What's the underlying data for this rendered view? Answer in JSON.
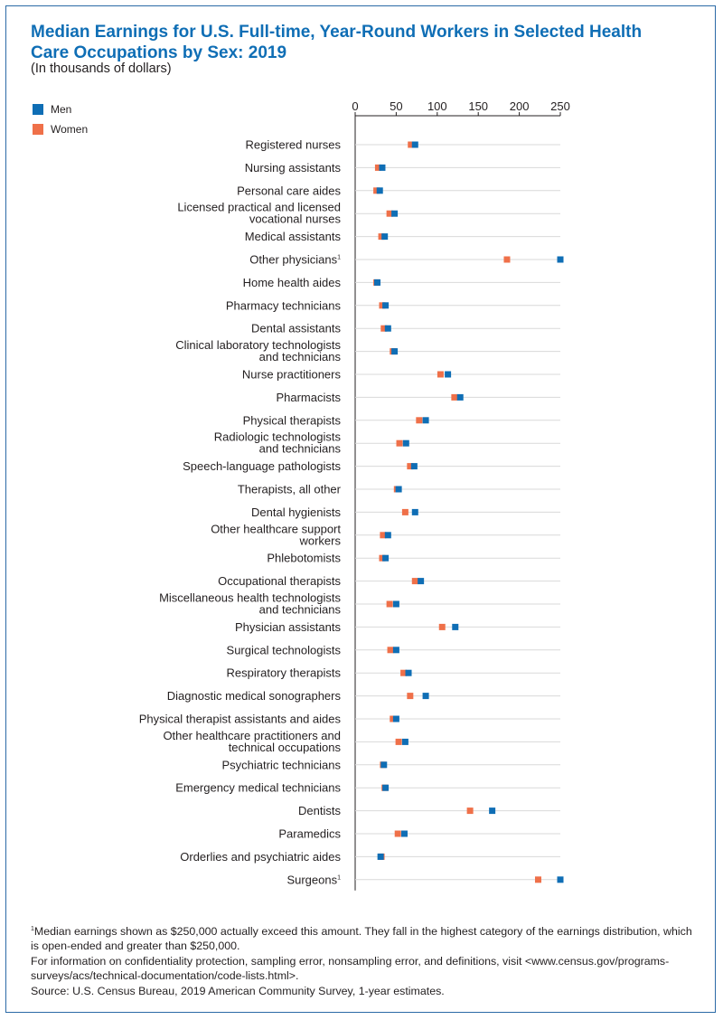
{
  "title": "Median Earnings for U.S. Full-time, Year-Round Workers in Selected Health Care Occupations by Sex: 2019",
  "subtitle": "(In thousands of dollars)",
  "colors": {
    "men": "#0f6eb5",
    "women": "#ef7049",
    "gridline": "#d9d9d9",
    "axis": "#231f20"
  },
  "legend": {
    "men": "Men",
    "women": "Women"
  },
  "chart_data": {
    "type": "scatter",
    "title": "Median Earnings for U.S. Full-time, Year-Round Workers in Selected Health Care Occupations by Sex: 2019",
    "xlabel": "",
    "ylabel": "",
    "xlim": [
      0,
      250
    ],
    "xticks": [
      0,
      50,
      100,
      150,
      200,
      250
    ],
    "grid": true,
    "legend_position": "top-left",
    "categories": [
      "Registered nurses",
      "Nursing assistants",
      "Personal care aides",
      "Licensed practical and licensed vocational nurses",
      "Medical assistants",
      "Other physicians",
      "Home health aides",
      "Pharmacy technicians",
      "Dental assistants",
      "Clinical laboratory technologists and technicians",
      "Nurse practitioners",
      "Pharmacists",
      "Physical therapists",
      "Radiologic technologists and technicians",
      "Speech-language pathologists",
      "Therapists, all other",
      "Dental hygienists",
      "Other healthcare support workers",
      "Phlebotomists",
      "Occupational therapists",
      "Miscellaneous health technologists and technicians",
      "Physician assistants",
      "Surgical technologists",
      "Respiratory therapists",
      "Diagnostic medical sonographers",
      "Physical therapist assistants and aides",
      "Other healthcare practitioners and technical occupations",
      "Psychiatric technicians",
      "Emergency medical technicians",
      "Dentists",
      "Paramedics",
      "Orderlies and psychiatric aides",
      "Surgeons"
    ],
    "category_lines": [
      [
        "Registered nurses"
      ],
      [
        "Nursing assistants"
      ],
      [
        "Personal care aides"
      ],
      [
        "Licensed practical and licensed",
        "vocational nurses"
      ],
      [
        "Medical assistants"
      ],
      [
        "Other physicians"
      ],
      [
        "Home health aides"
      ],
      [
        "Pharmacy technicians"
      ],
      [
        "Dental assistants"
      ],
      [
        "Clinical laboratory technologists",
        "and technicians"
      ],
      [
        "Nurse practitioners"
      ],
      [
        "Pharmacists"
      ],
      [
        "Physical therapists"
      ],
      [
        "Radiologic technologists",
        "and technicians"
      ],
      [
        "Speech-language pathologists"
      ],
      [
        "Therapists, all other"
      ],
      [
        "Dental hygienists"
      ],
      [
        "Other healthcare support",
        "workers"
      ],
      [
        "Phlebotomists"
      ],
      [
        "Occupational therapists"
      ],
      [
        "Miscellaneous health technologists",
        "and technicians"
      ],
      [
        "Physician assistants"
      ],
      [
        "Surgical technologists"
      ],
      [
        "Respiratory therapists"
      ],
      [
        "Diagnostic medical sonographers"
      ],
      [
        "Physical therapist assistants and aides"
      ],
      [
        "Other healthcare practitioners and",
        "technical occupations"
      ],
      [
        "Psychiatric technicians"
      ],
      [
        "Emergency medical technicians"
      ],
      [
        "Dentists"
      ],
      [
        "Paramedics"
      ],
      [
        "Orderlies and psychiatric aides"
      ],
      [
        "Surgeons"
      ]
    ],
    "footnote_marker": {
      "Other physicians": "1",
      "Surgeons": "1"
    },
    "series": [
      {
        "name": "Men",
        "values": [
          73,
          33,
          30,
          48,
          36,
          250,
          27,
          37,
          40,
          48,
          113,
          128,
          86,
          62,
          72,
          53,
          73,
          40,
          37,
          80,
          50,
          122,
          50,
          65,
          86,
          50,
          61,
          35,
          37,
          167,
          60,
          31,
          250
        ]
      },
      {
        "name": "Women",
        "values": [
          68,
          28,
          26,
          42,
          32,
          185,
          26,
          33,
          35,
          46,
          104,
          121,
          78,
          54,
          67,
          51,
          61,
          34,
          33,
          73,
          42,
          106,
          43,
          59,
          67,
          46,
          53,
          34,
          36,
          140,
          52,
          32,
          223
        ]
      }
    ]
  },
  "footnotes": {
    "marker": "1",
    "note1": "Median earnings shown as $250,000 actually exceed this amount. They fall in the highest category of the earnings distribution, which is open-ended and greater than $250,000.",
    "note2": "For information on confidentiality protection, sampling error, nonsampling error, and definitions, visit <www.census.gov/programs-surveys/acs/technical-documentation/code-lists.html>.",
    "source": "Source: U.S. Census Bureau, 2019 American Community Survey, 1-year estimates."
  }
}
